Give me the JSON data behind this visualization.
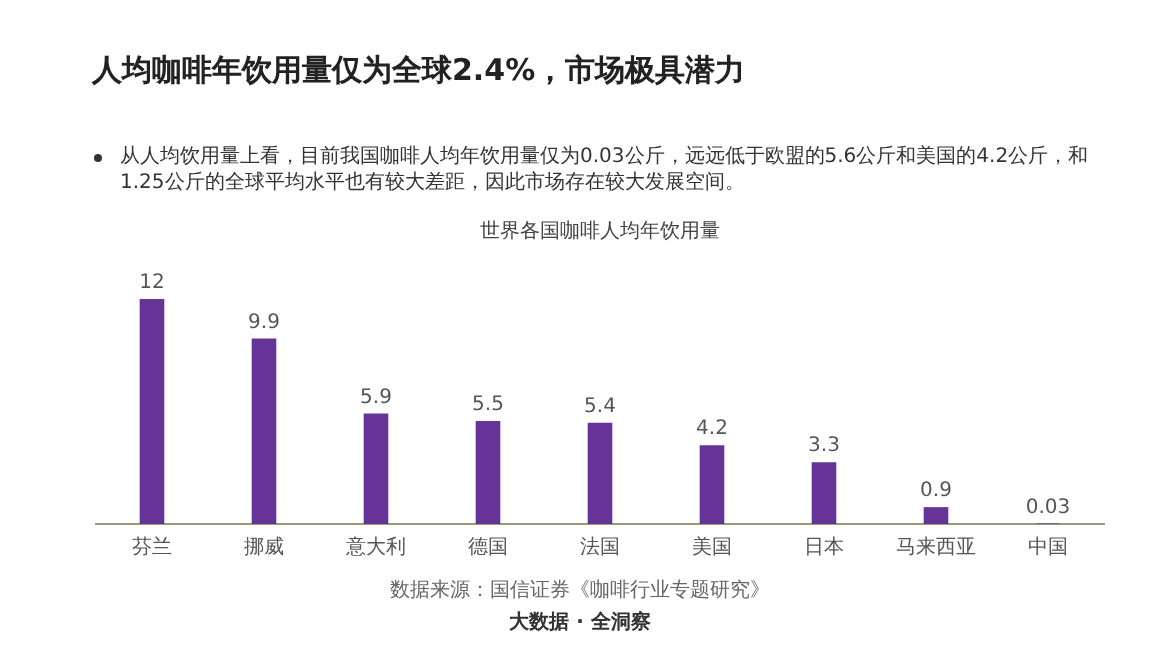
{
  "chart_data": {
    "type": "bar",
    "title": "世界各国咖啡人均年饮用量",
    "categories": [
      "芬兰",
      "挪威",
      "意大利",
      "德国",
      "法国",
      "美国",
      "日本",
      "马来西亚",
      "中国"
    ],
    "values": [
      12,
      9.9,
      5.9,
      5.5,
      5.4,
      4.2,
      3.3,
      0.9,
      0.03
    ],
    "color": "#663399",
    "data_labels": true,
    "grid": false,
    "legend": false,
    "annotations": [
      "人均咖啡年饮用量仅为全球2.4%，市场极具潜力",
      "从人均饮用量上看，目前我国咖啡人均年饮用量仅为0.03公斤，远远低于欧盟的5.6公斤和美国的4.2公斤，和1.25公斤的全球平均水平也有较大差距，因此市场存在较大发展空间。",
      "数据来源：国信证券《咖啡行业专题研究》",
      "大数据 · 全洞察"
    ]
  }
}
